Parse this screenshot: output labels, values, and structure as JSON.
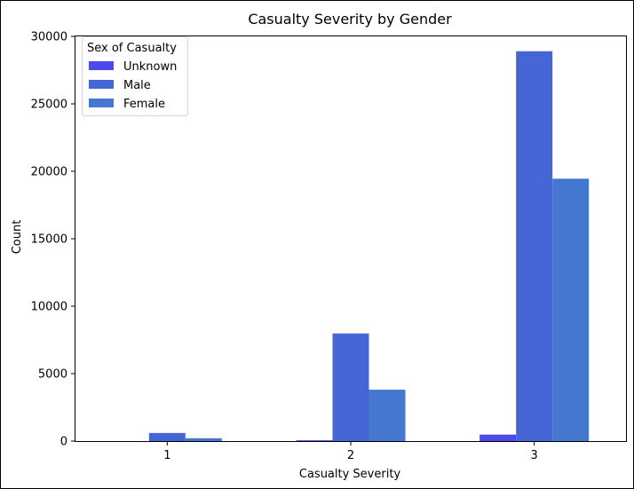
{
  "chart_data": {
    "type": "bar",
    "title": "Casualty Severity by Gender",
    "xlabel": "Casualty Severity",
    "ylabel": "Count",
    "categories": [
      "1",
      "2",
      "3"
    ],
    "ylim": [
      0,
      30000
    ],
    "yticks": [
      "0",
      "5000",
      "10000",
      "15000",
      "20000",
      "25000",
      "30000"
    ],
    "legend": {
      "title": "Sex of Casualty",
      "placement": "top-left"
    },
    "grid": false,
    "series": [
      {
        "name": "Unknown",
        "color": "#4b4aea",
        "values": [
          0,
          60,
          480
        ]
      },
      {
        "name": "Male",
        "color": "#4766d6",
        "values": [
          600,
          7980,
          28900
        ]
      },
      {
        "name": "Female",
        "color": "#4677d0",
        "values": [
          210,
          3810,
          19450
        ]
      }
    ]
  }
}
